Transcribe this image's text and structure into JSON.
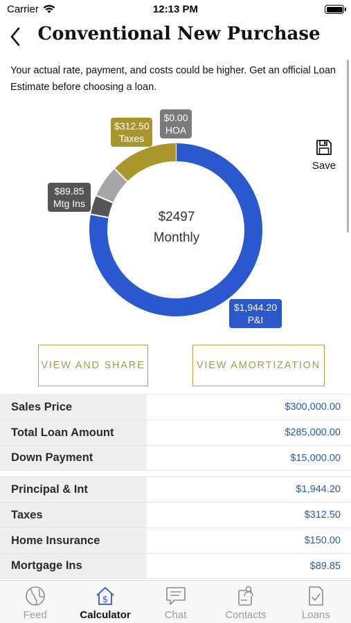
{
  "status_bar": {
    "carrier": "Carrier",
    "time": "12:13 PM"
  },
  "header": {
    "title": "Conventional New Purchase"
  },
  "disclaimer": "Your actual rate, payment, and costs could be higher. Get an official Loan Estimate before choosing a loan.",
  "chart": {
    "center_amount": "$2497",
    "center_label": "Monthly",
    "segments": [
      {
        "name": "P&I",
        "amount": "$1,944.20",
        "label": "P&I",
        "value": 1944.2,
        "color": "#2b57cf"
      },
      {
        "name": "Mtg Ins",
        "amount": "$89.85",
        "label": "Mtg Ins",
        "value": 89.85,
        "color": "#555555"
      },
      {
        "name": "Insurance",
        "value": 150.0,
        "color": "#a6a6a6"
      },
      {
        "name": "Taxes",
        "amount": "$312.50",
        "label": "Taxes",
        "value": 312.5,
        "color": "#a8952b"
      },
      {
        "name": "HOA",
        "amount": "$0.00",
        "label": "HOA",
        "value": 0.0,
        "color": "#7a7a7a"
      }
    ]
  },
  "save": {
    "label": "Save"
  },
  "buttons": {
    "view_share": "VIEW AND SHARE",
    "view_amortization": "VIEW AMORTIZATION"
  },
  "loan_summary": [
    {
      "label": "Sales Price",
      "value": "$300,000.00"
    },
    {
      "label": "Total Loan Amount",
      "value": "$285,000.00"
    },
    {
      "label": "Down Payment",
      "value": "$15,000.00"
    }
  ],
  "payment_breakdown": [
    {
      "label": "Principal & Int",
      "value": "$1,944.20"
    },
    {
      "label": "Taxes",
      "value": "$312.50"
    },
    {
      "label": "Home Insurance",
      "value": "$150.00"
    },
    {
      "label": "Mortgage Ins",
      "value": "$89.85"
    }
  ],
  "tabs": [
    {
      "label": "Feed",
      "icon": "globe-icon",
      "active": false
    },
    {
      "label": "Calculator",
      "icon": "calculator-house-icon",
      "active": true
    },
    {
      "label": "Chat",
      "icon": "chat-icon",
      "active": false
    },
    {
      "label": "Contacts",
      "icon": "contacts-icon",
      "active": false
    },
    {
      "label": "Loans",
      "icon": "loans-icon",
      "active": false
    }
  ],
  "colors": {
    "primary_blue": "#2b57cf",
    "gold": "#a8952b",
    "value_text": "#2e5aae"
  }
}
